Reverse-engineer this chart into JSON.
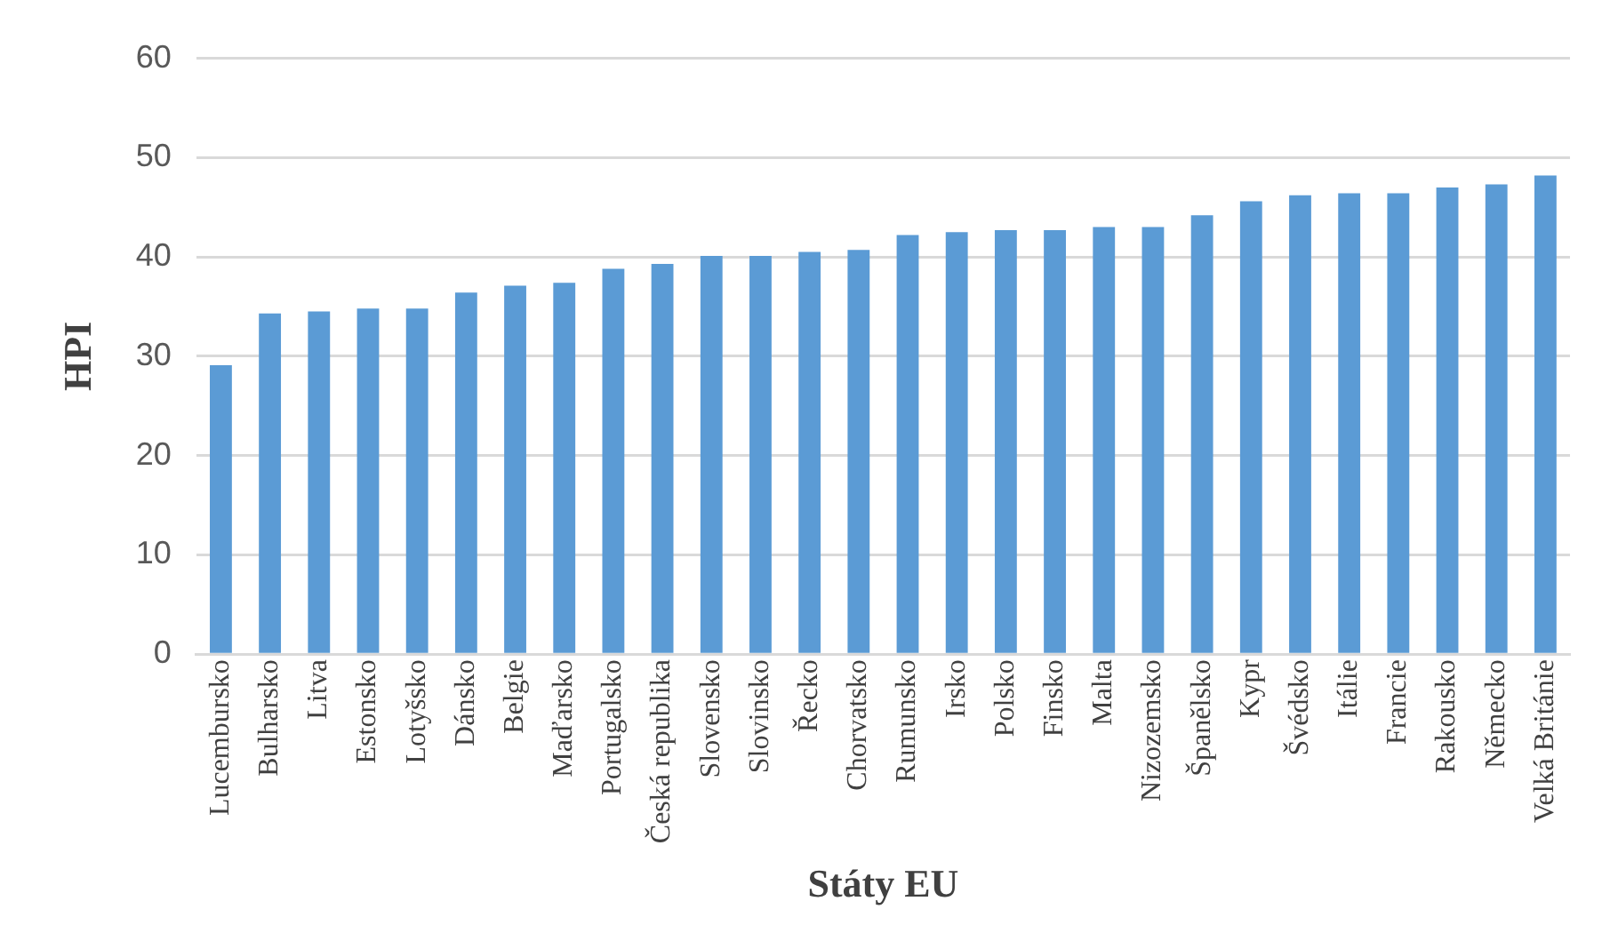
{
  "chart_data": {
    "type": "bar",
    "xlabel": "Státy EU",
    "ylabel": "HPI",
    "categories": [
      "Lucembursko",
      "Bulharsko",
      "Litva",
      "Estonsko",
      "Lotyšsko",
      "Dánsko",
      "Belgie",
      "Maďarsko",
      "Portugalsko",
      "Česká republika",
      "Slovensko",
      "Slovinsko",
      "Řecko",
      "Chorvatsko",
      "Rumunsko",
      "Irsko",
      "Polsko",
      "Finsko",
      "Malta",
      "Nizozemsko",
      "Španělsko",
      "Kypr",
      "Švédsko",
      "Itálie",
      "Francie",
      "Rakousko",
      "Německo",
      "Velká Británie"
    ],
    "values": [
      29.1,
      34.3,
      34.5,
      34.8,
      34.8,
      36.4,
      37.1,
      37.4,
      38.8,
      39.3,
      40.1,
      40.1,
      40.5,
      40.7,
      42.2,
      42.5,
      42.7,
      42.7,
      43.0,
      43.0,
      44.2,
      45.6,
      46.2,
      46.4,
      46.4,
      47.0,
      47.3,
      48.2
    ],
    "color": "#5b9bd5",
    "ylim": [
      0,
      60
    ],
    "yticks": [
      0,
      10,
      20,
      30,
      40,
      50,
      60
    ],
    "grid": "y",
    "legend": false
  }
}
